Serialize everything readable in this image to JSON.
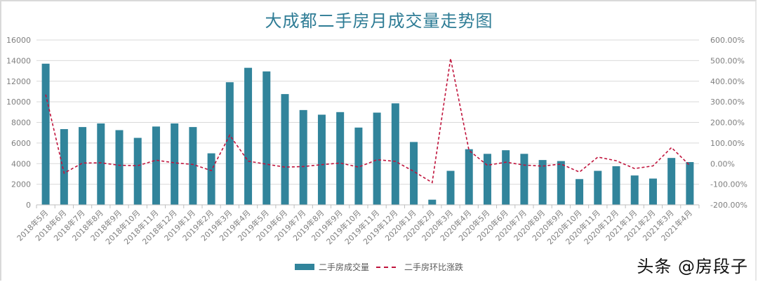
{
  "title": "大成都二手房月成交量走势图",
  "legend": {
    "bar_label": "二手房成交量",
    "line_label": "二手房环比涨跌"
  },
  "watermark": "头条 @房段子",
  "colors": {
    "bar": "#31849b",
    "line": "#c0143c",
    "title": "#2e7c95",
    "grid": "#d9d9d9",
    "tick_text": "#7f7f7f"
  },
  "chart_data": {
    "type": "bar",
    "title": "大成都二手房月成交量走势图",
    "xlabel": "",
    "ylabel": "",
    "y2label": "",
    "ylim": [
      0,
      16000
    ],
    "y2lim": [
      -200,
      600
    ],
    "yticks": [
      "0",
      "2000",
      "4000",
      "6000",
      "8000",
      "10000",
      "12000",
      "14000",
      "16000"
    ],
    "y2ticks": [
      "-200.00%",
      "-100.00%",
      "0.00%",
      "100.00%",
      "200.00%",
      "300.00%",
      "400.00%",
      "500.00%",
      "600.00%"
    ],
    "grid": true,
    "legend_position": "bottom",
    "categories": [
      "2018年5月",
      "2018年6月",
      "2018年7月",
      "2018年8月",
      "2018年9月",
      "2018年10月",
      "2018年11月",
      "2018年12月",
      "2019年1月",
      "2019年2月",
      "2019年3月",
      "2019年4月",
      "2019年5月",
      "2019年6月",
      "2019年7月",
      "2019年8月",
      "2019年9月",
      "2019年10月",
      "2019年11月",
      "2019年12月",
      "2020年1月",
      "2020年2月",
      "2020年3月",
      "2020年4月",
      "2020年5月",
      "2020年6月",
      "2020年7月",
      "2020年8月",
      "2020年9月",
      "2020年10月",
      "2020年11月",
      "2020年12月",
      "2021年1月",
      "2021年2月",
      "2021年3月",
      "2021年4月"
    ],
    "series": [
      {
        "name": "二手房成交量",
        "type": "bar",
        "axis": "left",
        "values": [
          13700,
          7350,
          7550,
          7900,
          7250,
          6500,
          7600,
          7900,
          7550,
          5000,
          11900,
          13300,
          12950,
          10750,
          9200,
          8750,
          9000,
          7500,
          8950,
          9850,
          6100,
          500,
          3300,
          5400,
          4950,
          5300,
          4950,
          4350,
          4250,
          2500,
          3300,
          3750,
          2850,
          2550,
          4550,
          4150
        ]
      },
      {
        "name": "二手房环比涨跌",
        "type": "line",
        "style": "dashed",
        "axis": "right",
        "unit": "%",
        "values": [
          335,
          -46,
          3,
          4,
          -8,
          -10,
          17,
          4,
          -4,
          -34,
          138,
          12,
          -3,
          -17,
          -14,
          -5,
          3,
          -17,
          19,
          11,
          -38,
          -92,
          510,
          64,
          -8,
          7,
          -7,
          -12,
          -2,
          -41,
          32,
          14,
          -24,
          -11,
          78,
          -9
        ]
      }
    ]
  }
}
